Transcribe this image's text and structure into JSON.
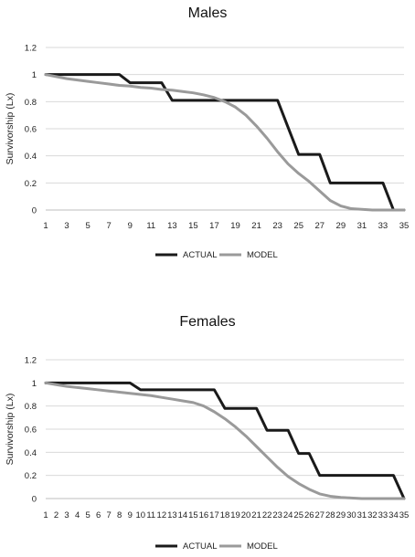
{
  "chart_data": [
    {
      "type": "line",
      "title": "Males",
      "xlabel": "",
      "ylabel": "Survivorship  (Lx)",
      "x": [
        1,
        2,
        3,
        4,
        5,
        6,
        7,
        8,
        9,
        10,
        11,
        12,
        13,
        14,
        15,
        16,
        17,
        18,
        19,
        20,
        21,
        22,
        23,
        24,
        25,
        26,
        27,
        28,
        29,
        30,
        31,
        32,
        33,
        34,
        35
      ],
      "x_tick_labels": [
        "1",
        "3",
        "5",
        "7",
        "9",
        "11",
        "13",
        "15",
        "17",
        "19",
        "21",
        "23",
        "25",
        "27",
        "29",
        "31",
        "33",
        "35"
      ],
      "y_tick_labels": [
        "0",
        "0.2",
        "0.4",
        "0.6",
        "0.8",
        "1",
        "1.2"
      ],
      "ylim": [
        0,
        1.2
      ],
      "grid": "horizontal",
      "legend_position": "bottom",
      "series": [
        {
          "name": "ACTUAL",
          "color": "#1a1a1a",
          "values": [
            1,
            1,
            1,
            1,
            1,
            1,
            1,
            1,
            0.94,
            0.94,
            0.94,
            0.94,
            0.81,
            0.81,
            0.81,
            0.81,
            0.81,
            0.81,
            0.81,
            0.81,
            0.81,
            0.81,
            0.81,
            0.61,
            0.41,
            0.41,
            0.41,
            0.2,
            0.2,
            0.2,
            0.2,
            0.2,
            0.2,
            0,
            0
          ]
        },
        {
          "name": "MODEL",
          "color": "#9a9a9a",
          "values": [
            1,
            0.985,
            0.97,
            0.96,
            0.95,
            0.94,
            0.93,
            0.92,
            0.915,
            0.905,
            0.9,
            0.89,
            0.885,
            0.875,
            0.865,
            0.85,
            0.83,
            0.8,
            0.76,
            0.7,
            0.62,
            0.53,
            0.43,
            0.34,
            0.27,
            0.21,
            0.14,
            0.07,
            0.03,
            0.01,
            0.005,
            0,
            0,
            0,
            0
          ]
        }
      ]
    },
    {
      "type": "line",
      "title": "Females",
      "xlabel": "",
      "ylabel": "Survivorship  (Lx)",
      "x": [
        1,
        2,
        3,
        4,
        5,
        6,
        7,
        8,
        9,
        10,
        11,
        12,
        13,
        14,
        15,
        16,
        17,
        18,
        19,
        20,
        21,
        22,
        23,
        24,
        25,
        26,
        27,
        28,
        29,
        30,
        31,
        32,
        33,
        34,
        35
      ],
      "x_tick_labels": [
        "1",
        "2",
        "3",
        "4",
        "5",
        "6",
        "7",
        "8",
        "9",
        "10",
        "11",
        "12",
        "13",
        "14",
        "15",
        "16",
        "17",
        "18",
        "19",
        "20",
        "21",
        "22",
        "23",
        "24",
        "25",
        "26",
        "27",
        "28",
        "29",
        "30",
        "31",
        "32",
        "33",
        "34",
        "35"
      ],
      "y_tick_labels": [
        "0",
        "0.2",
        "0.4",
        "0.6",
        "0.8",
        "1",
        "1.2"
      ],
      "ylim": [
        0,
        1.2
      ],
      "grid": "horizontal",
      "legend_position": "bottom",
      "series": [
        {
          "name": "ACTUAL",
          "color": "#1a1a1a",
          "values": [
            1,
            1,
            1,
            1,
            1,
            1,
            1,
            1,
            1,
            0.94,
            0.94,
            0.94,
            0.94,
            0.94,
            0.94,
            0.94,
            0.94,
            0.78,
            0.78,
            0.78,
            0.78,
            0.59,
            0.59,
            0.59,
            0.39,
            0.39,
            0.2,
            0.2,
            0.2,
            0.2,
            0.2,
            0.2,
            0.2,
            0.2,
            0
          ]
        },
        {
          "name": "MODEL",
          "color": "#9a9a9a",
          "values": [
            1,
            0.985,
            0.97,
            0.96,
            0.95,
            0.94,
            0.93,
            0.92,
            0.91,
            0.9,
            0.89,
            0.875,
            0.86,
            0.845,
            0.83,
            0.8,
            0.75,
            0.69,
            0.62,
            0.54,
            0.45,
            0.36,
            0.27,
            0.19,
            0.13,
            0.08,
            0.04,
            0.02,
            0.01,
            0.005,
            0,
            0,
            0,
            0,
            0
          ]
        }
      ]
    }
  ]
}
